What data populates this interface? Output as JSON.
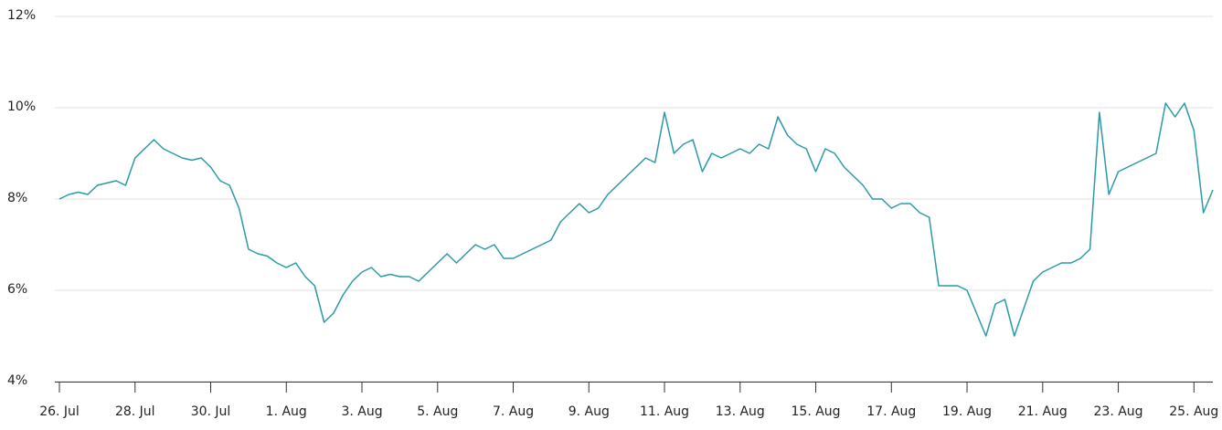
{
  "chart_data": {
    "type": "line",
    "categories": [
      "26. Jul",
      null,
      null,
      null,
      null,
      null,
      null,
      null,
      "28. Jul",
      null,
      null,
      null,
      null,
      null,
      null,
      null,
      "30. Jul",
      null,
      null,
      null,
      null,
      null,
      null,
      null,
      "1. Aug",
      null,
      null,
      null,
      null,
      null,
      null,
      null,
      "3. Aug",
      null,
      null,
      null,
      null,
      null,
      null,
      null,
      "5. Aug",
      null,
      null,
      null,
      null,
      null,
      null,
      null,
      "7. Aug",
      null,
      null,
      null,
      null,
      null,
      null,
      null,
      "9. Aug",
      null,
      null,
      null,
      null,
      null,
      null,
      null,
      "11. Aug",
      null,
      null,
      null,
      null,
      null,
      null,
      null,
      "13. Aug",
      null,
      null,
      null,
      null,
      null,
      null,
      null,
      "15. Aug",
      null,
      null,
      null,
      null,
      null,
      null,
      null,
      "17. Aug",
      null,
      null,
      null,
      null,
      null,
      null,
      null,
      "19. Aug",
      null,
      null,
      null,
      null,
      null,
      null,
      null,
      "21. Aug",
      null,
      null,
      null,
      null,
      null,
      null,
      null,
      "23. Aug",
      null,
      null,
      null,
      null,
      null,
      null,
      null,
      "25. Aug",
      null,
      null
    ],
    "values": [
      8.0,
      8.1,
      8.15,
      8.1,
      8.3,
      8.35,
      8.4,
      8.3,
      8.9,
      9.1,
      9.3,
      9.1,
      9.0,
      8.9,
      8.85,
      8.9,
      8.7,
      8.4,
      8.3,
      7.8,
      6.9,
      6.8,
      6.75,
      6.6,
      6.5,
      6.6,
      6.3,
      6.1,
      5.3,
      5.5,
      5.9,
      6.2,
      6.4,
      6.5,
      6.3,
      6.35,
      6.3,
      6.3,
      6.2,
      6.4,
      6.6,
      6.8,
      6.6,
      6.8,
      7.0,
      6.9,
      7.0,
      6.7,
      6.7,
      6.8,
      6.9,
      7.0,
      7.1,
      7.5,
      7.7,
      7.9,
      7.7,
      7.8,
      8.1,
      8.3,
      8.5,
      8.7,
      8.9,
      8.8,
      9.9,
      9.0,
      9.2,
      9.3,
      8.6,
      9.0,
      8.9,
      9.0,
      9.1,
      9.0,
      9.2,
      9.1,
      9.8,
      9.4,
      9.2,
      9.1,
      8.6,
      9.1,
      9.0,
      8.7,
      8.5,
      8.3,
      8.0,
      8.0,
      7.8,
      7.9,
      7.9,
      7.7,
      7.6,
      6.1,
      6.1,
      6.1,
      6.0,
      5.5,
      5.0,
      5.7,
      5.8,
      5.0,
      5.6,
      6.2,
      6.4,
      6.5,
      6.6,
      6.6,
      6.7,
      6.9,
      9.9,
      8.1,
      8.6,
      8.7,
      8.8,
      8.9,
      9.0,
      10.1,
      9.8,
      10.1,
      9.5,
      7.7,
      8.2
    ],
    "color": "#2a9aa6",
    "ylim": [
      4,
      12
    ],
    "yticks": [
      {
        "value": 4,
        "label": "4%"
      },
      {
        "value": 6,
        "label": "6%"
      },
      {
        "value": 8,
        "label": "8%"
      },
      {
        "value": 10,
        "label": "10%"
      },
      {
        "value": 12,
        "label": "12%"
      }
    ],
    "grid": true
  }
}
